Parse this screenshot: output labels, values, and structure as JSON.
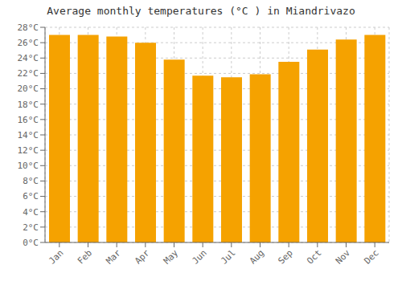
{
  "chart_data": {
    "type": "bar",
    "title": "Average monthly temperatures (°C ) in Miandrivazo",
    "categories": [
      "Jan",
      "Feb",
      "Mar",
      "Apr",
      "May",
      "Jun",
      "Jul",
      "Aug",
      "Sep",
      "Oct",
      "Nov",
      "Dec"
    ],
    "values": [
      27.0,
      27.0,
      26.8,
      26.0,
      23.8,
      21.7,
      21.5,
      21.9,
      23.5,
      25.1,
      26.4,
      27.0
    ],
    "color": "#F5A200",
    "ylim": [
      0,
      28
    ],
    "yticks": [
      {
        "value": 0,
        "label": "0°C"
      },
      {
        "value": 2,
        "label": "2°C"
      },
      {
        "value": 4,
        "label": "4°C"
      },
      {
        "value": 6,
        "label": "6°C"
      },
      {
        "value": 8,
        "label": "8°C"
      },
      {
        "value": 10,
        "label": "10°C"
      },
      {
        "value": 12,
        "label": "12°C"
      },
      {
        "value": 14,
        "label": "14°C"
      },
      {
        "value": 16,
        "label": "16°C"
      },
      {
        "value": 18,
        "label": "18°C"
      },
      {
        "value": 20,
        "label": "20°C"
      },
      {
        "value": 22,
        "label": "22°C"
      },
      {
        "value": 24,
        "label": "24°C"
      },
      {
        "value": 26,
        "label": "26°C"
      },
      {
        "value": 28,
        "label": "28°C"
      }
    ],
    "grid": true
  }
}
